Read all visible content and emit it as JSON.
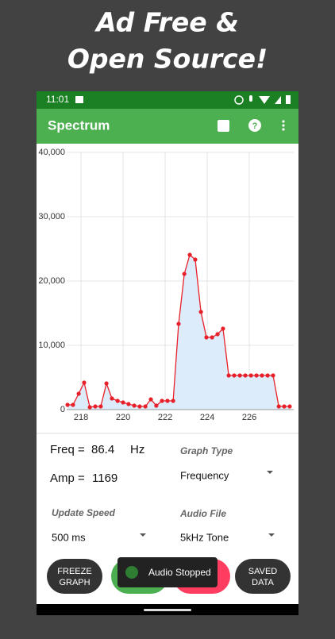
{
  "headline": [
    "Ad Free &",
    "Open Source!"
  ],
  "status_bar": {
    "time": "11:01"
  },
  "app_bar": {
    "title": "Spectrum"
  },
  "chart_data": {
    "type": "line",
    "x": [
      217.36,
      217.62,
      217.89,
      218.15,
      218.42,
      218.68,
      218.94,
      219.21,
      219.47,
      219.74,
      220.0,
      220.26,
      220.53,
      220.79,
      221.06,
      221.32,
      221.58,
      221.85,
      222.11,
      222.38,
      222.64,
      222.91,
      223.17,
      223.43,
      223.7,
      223.96,
      224.23,
      224.49,
      224.75,
      225.02,
      225.28,
      225.55,
      225.81,
      226.08,
      226.34,
      226.6,
      226.87,
      227.13,
      227.4,
      227.66,
      227.92
    ],
    "values": [
      740,
      740,
      2470,
      4200,
      370,
      490,
      490,
      4070,
      1730,
      1360,
      1110,
      860,
      620,
      490,
      490,
      1600,
      620,
      1360,
      1360,
      1360,
      13330,
      21100,
      24070,
      23330,
      15190,
      11230,
      11230,
      11730,
      12590,
      5310,
      5310,
      5310,
      5310,
      5310,
      5310,
      5310,
      5310,
      5310,
      490,
      490,
      490
    ],
    "color": "#e8202a",
    "fill_color": "#dcecfb",
    "xlim": [
      217.32,
      228.11
    ],
    "ylim": [
      0,
      40000
    ],
    "xticks": [
      218,
      220,
      222,
      224,
      226
    ],
    "yticks": [
      0,
      {
        "value": 10000,
        "label": "10,000"
      },
      {
        "value": 20000,
        "label": "20,000"
      },
      {
        "value": 30000,
        "label": "30,000"
      },
      {
        "value": 40000,
        "label": "40,000"
      }
    ],
    "grid": true
  },
  "controls": {
    "freq_label": "Freq =",
    "freq_value": "86.4",
    "freq_unit": "Hz",
    "amp_label": "Amp =",
    "amp_value": "1169",
    "graph_type_label": "Graph Type",
    "graph_type_value": "Frequency",
    "update_speed_label": "Update Speed",
    "update_speed_value": "500 ms",
    "audio_file_label": "Audio File",
    "audio_file_value": "5kHz Tone"
  },
  "buttons": {
    "freeze": [
      "FREEZE",
      "GRAPH"
    ],
    "saved": [
      "SAVED",
      "DATA"
    ]
  },
  "toast": "Audio Stopped"
}
